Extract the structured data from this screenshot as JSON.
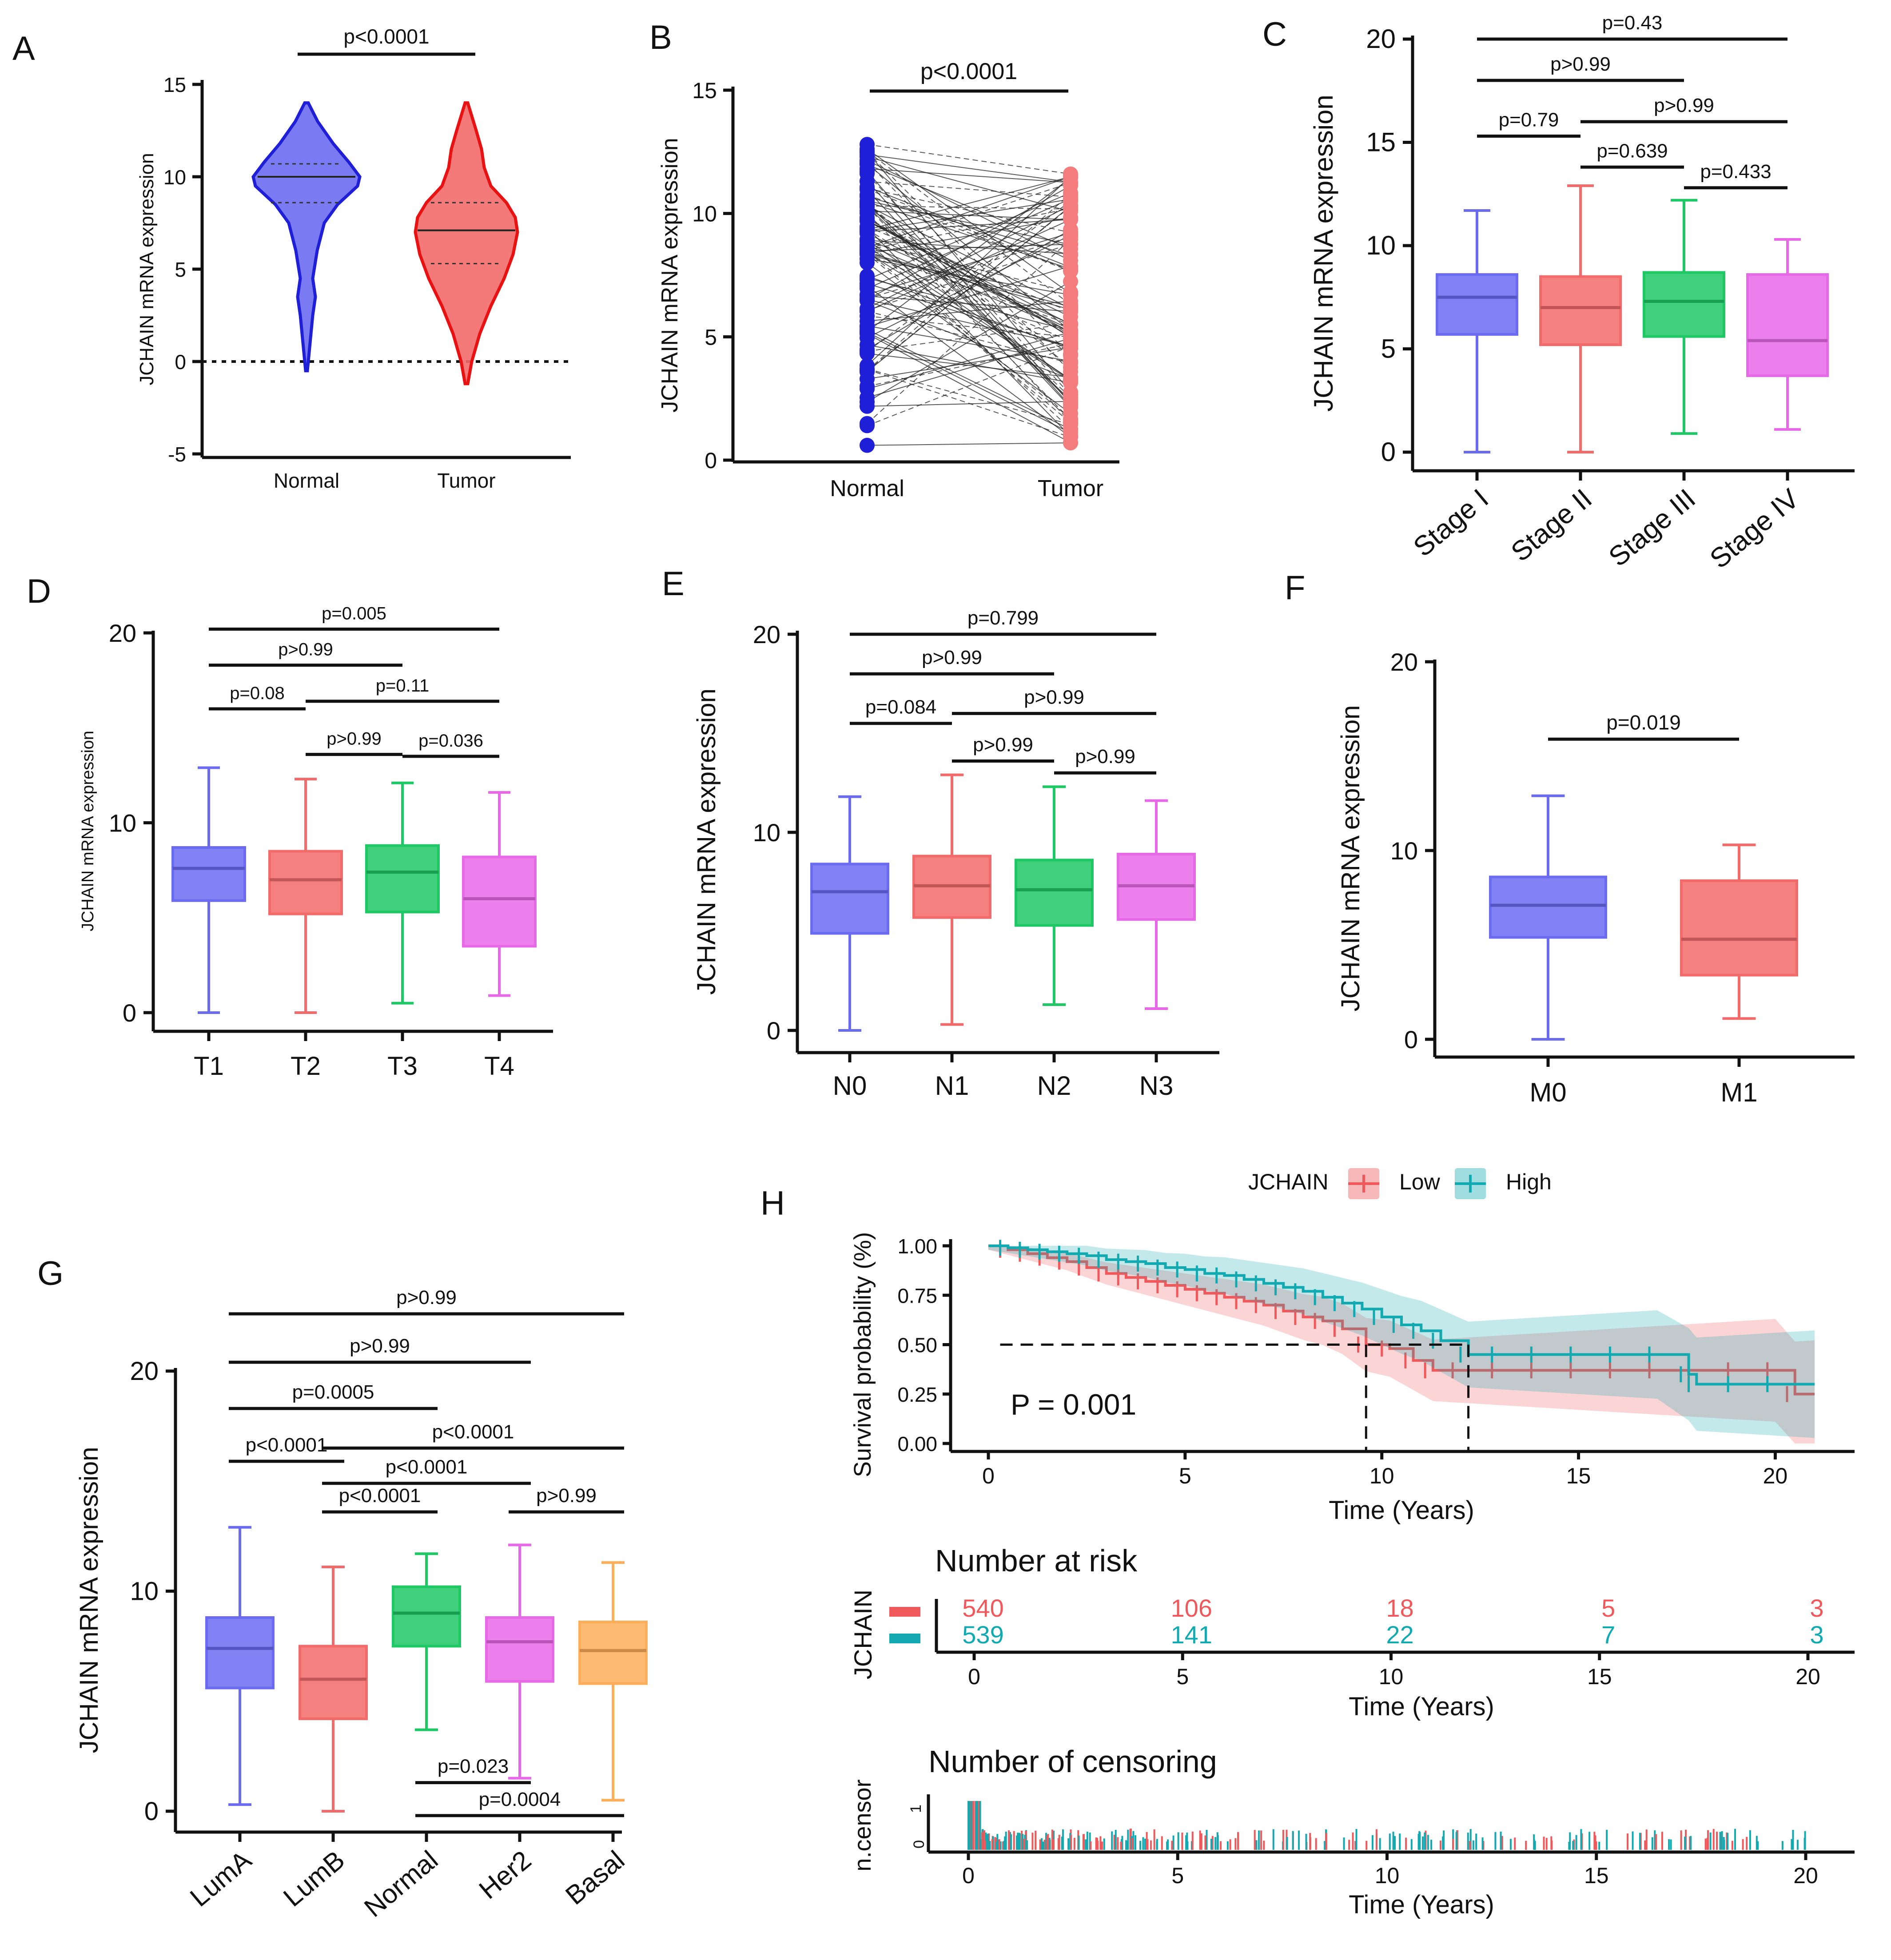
{
  "colors": {
    "blue": "#6b6bf2",
    "red": "#f36a6a",
    "green": "#1ec864",
    "violet": "#e769e7",
    "orange": "#fcae5a",
    "pure_blue": "#1f1fd8",
    "pure_red": "#e81212",
    "pair_red": "#f47c7c",
    "km_low": "#f0595b",
    "km_high": "#12a9b0"
  },
  "chart_data": [
    {
      "panel": "A",
      "type": "violin",
      "ylabel": "JCHAIN mRNA expression",
      "categories": [
        "Normal",
        "Tumor"
      ],
      "yticks": [
        "-5",
        "0",
        "5",
        "10",
        "15"
      ],
      "ylim": [
        -5,
        15
      ],
      "reference_line": 0,
      "medians": [
        10.0,
        7.1
      ],
      "quartiles": [
        [
          8.6,
          10.7
        ],
        [
          5.3,
          8.6
        ]
      ],
      "ranges": [
        [
          -0.5,
          14.0
        ],
        [
          -1.2,
          14.0
        ]
      ],
      "comparisons": [
        {
          "from": "Normal",
          "to": "Tumor",
          "label": "p<0.0001"
        }
      ]
    },
    {
      "panel": "B",
      "type": "paired-dot",
      "ylabel": "JCHAIN mRNA expression",
      "categories": [
        "Normal",
        "Tumor"
      ],
      "yticks": [
        "0",
        "5",
        "10",
        "15"
      ],
      "ylim": [
        0,
        15
      ],
      "normal_range": [
        0.6,
        12.8
      ],
      "tumor_range": [
        0.7,
        11.6
      ],
      "comparisons": [
        {
          "from": "Normal",
          "to": "Tumor",
          "label": "p<0.0001"
        }
      ]
    },
    {
      "panel": "C",
      "type": "box",
      "ylabel": "JCHAIN mRNA expression",
      "categories": [
        "Stage I",
        "Stage II",
        "Stage III",
        "Stage IV"
      ],
      "yticks": [
        "0",
        "5",
        "10",
        "15",
        "20"
      ],
      "ylim": [
        0,
        20
      ],
      "boxes": [
        {
          "min": 0.0,
          "q1": 5.7,
          "median": 7.5,
          "q3": 8.6,
          "max": 11.7
        },
        {
          "min": 0.0,
          "q1": 5.2,
          "median": 7.0,
          "q3": 8.5,
          "max": 12.9
        },
        {
          "min": 0.9,
          "q1": 5.6,
          "median": 7.3,
          "q3": 8.7,
          "max": 12.2
        },
        {
          "min": 1.1,
          "q1": 3.7,
          "median": 5.4,
          "q3": 8.6,
          "max": 10.3
        }
      ],
      "comparisons": [
        {
          "from": "Stage I",
          "to": "Stage IV",
          "label": "p=0.43",
          "level": 20
        },
        {
          "from": "Stage I",
          "to": "Stage III",
          "label": "p>0.99",
          "level": 18.0
        },
        {
          "from": "Stage II",
          "to": "Stage IV",
          "label": "p>0.99",
          "level": 16.0
        },
        {
          "from": "Stage I",
          "to": "Stage II",
          "label": "p=0.79",
          "level": 15.3
        },
        {
          "from": "Stage II",
          "to": "Stage III",
          "label": "p=0.639",
          "level": 13.8
        },
        {
          "from": "Stage III",
          "to": "Stage IV",
          "label": "p=0.433",
          "level": 12.8
        }
      ]
    },
    {
      "panel": "D",
      "type": "box",
      "ylabel": "JCHAIN mRNA expression",
      "categories": [
        "T1",
        "T2",
        "T3",
        "T4"
      ],
      "yticks": [
        "0",
        "10",
        "20"
      ],
      "ylim": [
        0,
        20
      ],
      "boxes": [
        {
          "min": 0.0,
          "q1": 5.9,
          "median": 7.6,
          "q3": 8.7,
          "max": 12.9
        },
        {
          "min": 0.0,
          "q1": 5.2,
          "median": 7.0,
          "q3": 8.5,
          "max": 12.3
        },
        {
          "min": 0.5,
          "q1": 5.3,
          "median": 7.4,
          "q3": 8.8,
          "max": 12.1
        },
        {
          "min": 0.9,
          "q1": 3.5,
          "median": 6.0,
          "q3": 8.2,
          "max": 11.6
        }
      ],
      "comparisons": [
        {
          "from": "T1",
          "to": "T4",
          "label": "p=0.005",
          "level": 20.2
        },
        {
          "from": "T1",
          "to": "T3",
          "label": "p>0.99",
          "level": 18.3
        },
        {
          "from": "T2",
          "to": "T4",
          "label": "p=0.11",
          "level": 16.4
        },
        {
          "from": "T1",
          "to": "T2",
          "label": "p=0.08",
          "level": 16.0
        },
        {
          "from": "T2",
          "to": "T3",
          "label": "p>0.99",
          "level": 13.6
        },
        {
          "from": "T3",
          "to": "T4",
          "label": "p=0.036",
          "level": 13.5
        }
      ]
    },
    {
      "panel": "E",
      "type": "box",
      "ylabel": "JCHAIN mRNA expression",
      "categories": [
        "N0",
        "N1",
        "N2",
        "N3"
      ],
      "yticks": [
        "0",
        "10",
        "20"
      ],
      "ylim": [
        0,
        20
      ],
      "boxes": [
        {
          "min": 0.0,
          "q1": 4.9,
          "median": 7.0,
          "q3": 8.4,
          "max": 11.8
        },
        {
          "min": 0.3,
          "q1": 5.7,
          "median": 7.3,
          "q3": 8.8,
          "max": 12.9
        },
        {
          "min": 1.3,
          "q1": 5.3,
          "median": 7.1,
          "q3": 8.6,
          "max": 12.3
        },
        {
          "min": 1.1,
          "q1": 5.6,
          "median": 7.3,
          "q3": 8.9,
          "max": 11.6
        }
      ],
      "comparisons": [
        {
          "from": "N0",
          "to": "N3",
          "label": "p=0.799",
          "level": 20.0
        },
        {
          "from": "N0",
          "to": "N2",
          "label": "p>0.99",
          "level": 18.0
        },
        {
          "from": "N1",
          "to": "N3",
          "label": "p>0.99",
          "level": 16.0
        },
        {
          "from": "N0",
          "to": "N1",
          "label": "p=0.084",
          "level": 15.5
        },
        {
          "from": "N1",
          "to": "N2",
          "label": "p>0.99",
          "level": 13.6
        },
        {
          "from": "N2",
          "to": "N3",
          "label": "p>0.99",
          "level": 13.0
        }
      ]
    },
    {
      "panel": "F",
      "type": "box",
      "ylabel": "JCHAIN mRNA expression",
      "categories": [
        "M0",
        "M1"
      ],
      "yticks": [
        "0",
        "10",
        "20"
      ],
      "ylim": [
        0,
        20
      ],
      "boxes": [
        {
          "min": 0.0,
          "q1": 5.4,
          "median": 7.1,
          "q3": 8.6,
          "max": 12.9
        },
        {
          "min": 1.1,
          "q1": 3.4,
          "median": 5.3,
          "q3": 8.4,
          "max": 10.3
        }
      ],
      "comparisons": [
        {
          "from": "M0",
          "to": "M1",
          "label": "p=0.019",
          "level": 15.9
        }
      ]
    },
    {
      "panel": "G",
      "type": "box",
      "ylabel": "JCHAIN mRNA expression",
      "categories": [
        "LumA",
        "LumB",
        "Normal",
        "Her2",
        "Basal"
      ],
      "yticks": [
        "0",
        "10",
        "20"
      ],
      "ylim": [
        0,
        20
      ],
      "boxes": [
        {
          "min": 0.3,
          "q1": 5.6,
          "median": 7.4,
          "q3": 8.8,
          "max": 12.9
        },
        {
          "min": 0.0,
          "q1": 4.2,
          "median": 6.0,
          "q3": 7.5,
          "max": 11.1
        },
        {
          "min": 3.7,
          "q1": 7.5,
          "median": 9.0,
          "q3": 10.2,
          "max": 11.7
        },
        {
          "min": 1.5,
          "q1": 5.9,
          "median": 7.7,
          "q3": 8.8,
          "max": 12.1
        },
        {
          "min": 0.5,
          "q1": 5.8,
          "median": 7.3,
          "q3": 8.6,
          "max": 11.3
        }
      ],
      "comparisons": [
        {
          "from": "LumA",
          "to": "Basal",
          "label": "p>0.99",
          "level": 22.6
        },
        {
          "from": "LumA",
          "to": "Her2",
          "label": "p>0.99",
          "level": 20.4
        },
        {
          "from": "LumA",
          "to": "Normal",
          "label": "p=0.0005",
          "level": 18.3
        },
        {
          "from": "LumB",
          "to": "Basal",
          "label": "p<0.0001",
          "level": 16.5
        },
        {
          "from": "LumA",
          "to": "LumB",
          "label": "p<0.0001",
          "level": 15.9
        },
        {
          "from": "LumB",
          "to": "Her2",
          "label": "p<0.0001",
          "level": 14.9
        },
        {
          "from": "LumB",
          "to": "Normal",
          "label": "p<0.0001",
          "level": 13.6
        },
        {
          "from": "Her2",
          "to": "Basal",
          "label": "p>0.99",
          "level": 13.6
        },
        {
          "from": "Normal",
          "to": "Her2",
          "label": "p=0.023",
          "level": 1.3
        },
        {
          "from": "Normal",
          "to": "Basal",
          "label": "p=0.0004",
          "level": -0.2
        }
      ]
    },
    {
      "panel": "H",
      "type": "kaplan-meier",
      "legend_title": "JCHAIN",
      "legend": [
        "Low",
        "High"
      ],
      "ylabel": "Survival probability (%)",
      "xlabel": "Time (Years)",
      "xticks": [
        "0",
        "5",
        "10",
        "15",
        "20"
      ],
      "yticks": [
        "0.00",
        "0.25",
        "0.50",
        "0.75",
        "1.00"
      ],
      "xlim": [
        0,
        21
      ],
      "ylim": [
        0,
        1
      ],
      "pvalue": "P = 0.001",
      "median_survival": {
        "Low": 9.6,
        "High": 12.2
      },
      "series": [
        {
          "name": "Low",
          "x": [
            0,
            0.5,
            1,
            1.5,
            2,
            2.5,
            3,
            3.5,
            4,
            4.5,
            5,
            5.5,
            6,
            6.5,
            7,
            7.5,
            8,
            8.5,
            9,
            9.6,
            10.2,
            10.8,
            11.3,
            12,
            13,
            14,
            15,
            16,
            17,
            18,
            19,
            20,
            20.5,
            21
          ],
          "y": [
            1,
            0.98,
            0.96,
            0.94,
            0.92,
            0.89,
            0.86,
            0.84,
            0.82,
            0.8,
            0.78,
            0.76,
            0.74,
            0.72,
            0.7,
            0.67,
            0.64,
            0.62,
            0.58,
            0.5,
            0.48,
            0.42,
            0.37,
            0.37,
            0.37,
            0.37,
            0.37,
            0.37,
            0.37,
            0.37,
            0.37,
            0.37,
            0.25,
            0.25
          ]
        },
        {
          "name": "High",
          "x": [
            0,
            0.5,
            1,
            1.5,
            2,
            2.5,
            3,
            3.5,
            4,
            4.5,
            5,
            5.5,
            6,
            6.5,
            7,
            7.5,
            8,
            8.5,
            9,
            9.5,
            10,
            10.5,
            11,
            11.5,
            12.2,
            13,
            14,
            15,
            16,
            17,
            17.8,
            18,
            19,
            20,
            21
          ],
          "y": [
            1,
            0.99,
            0.98,
            0.97,
            0.96,
            0.95,
            0.93,
            0.92,
            0.91,
            0.89,
            0.88,
            0.86,
            0.85,
            0.83,
            0.81,
            0.79,
            0.77,
            0.74,
            0.71,
            0.68,
            0.64,
            0.6,
            0.57,
            0.52,
            0.45,
            0.45,
            0.45,
            0.45,
            0.45,
            0.45,
            0.35,
            0.3,
            0.3,
            0.3,
            0.3
          ]
        }
      ],
      "risk_table": {
        "title": "Number at risk",
        "ylabel": "JCHAIN",
        "times": [
          0,
          5,
          10,
          15,
          20
        ],
        "rows": [
          {
            "name": "Low",
            "values": [
              "540",
              "106",
              "18",
              "5",
              "3"
            ]
          },
          {
            "name": "High",
            "values": [
              "539",
              "141",
              "22",
              "7",
              "3"
            ]
          }
        ]
      },
      "censoring": {
        "title": "Number of censoring",
        "ylabel": "n.censor",
        "yticks": [
          "0",
          "1"
        ]
      }
    }
  ]
}
